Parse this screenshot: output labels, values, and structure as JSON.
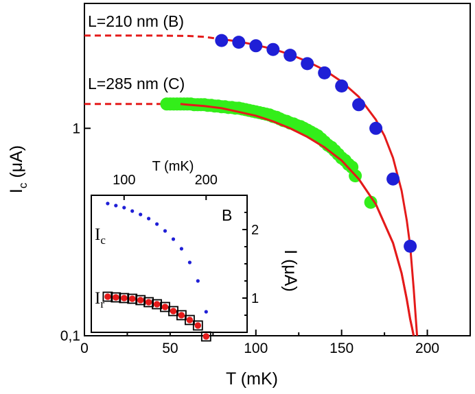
{
  "chart_data": [
    {
      "type": "scatter",
      "xlabel": "T (mK)",
      "ylabel_main": "I",
      "ylabel_sub": "c",
      "ylabel_unit": " (μA)",
      "xlim": [
        0,
        225
      ],
      "ylim": [
        0.1,
        4.0
      ],
      "yscale": "log",
      "x_ticks": [
        "0",
        "50",
        "100",
        "150",
        "200"
      ],
      "y_ticks": [
        "0,1",
        "1"
      ],
      "colors": {
        "B": "#1f1fd6",
        "C": "#33ee1a",
        "fit": "#e41a1a"
      },
      "annotations": [
        "L=210 nm (B)",
        "L=285 nm (C)"
      ],
      "series": [
        {
          "name": "B",
          "x": [
            80,
            90,
            100,
            110,
            120,
            130,
            140,
            150,
            160,
            170,
            180,
            190
          ],
          "y": [
            2.65,
            2.6,
            2.5,
            2.4,
            2.25,
            2.05,
            1.85,
            1.6,
            1.3,
            1.0,
            0.57,
            0.27
          ]
        },
        {
          "name": "C",
          "x": [
            48,
            50,
            52,
            54,
            56,
            58,
            60,
            62,
            64,
            66,
            68,
            70,
            72,
            74,
            76,
            78,
            80,
            82,
            84,
            86,
            88,
            90,
            92,
            94,
            96,
            98,
            100,
            102,
            104,
            106,
            108,
            110,
            112,
            114,
            116,
            118,
            120,
            122,
            124,
            126,
            128,
            130,
            132,
            134,
            136,
            138,
            140,
            142,
            144,
            146,
            148,
            150,
            152,
            154,
            156,
            158,
            167
          ],
          "y": [
            1.31,
            1.31,
            1.31,
            1.31,
            1.31,
            1.31,
            1.31,
            1.31,
            1.3,
            1.3,
            1.3,
            1.3,
            1.29,
            1.29,
            1.28,
            1.28,
            1.27,
            1.27,
            1.26,
            1.26,
            1.25,
            1.25,
            1.24,
            1.23,
            1.22,
            1.21,
            1.2,
            1.19,
            1.18,
            1.17,
            1.16,
            1.14,
            1.13,
            1.11,
            1.09,
            1.08,
            1.06,
            1.05,
            1.03,
            1.02,
            1.0,
            0.98,
            0.96,
            0.94,
            0.92,
            0.89,
            0.86,
            0.83,
            0.81,
            0.78,
            0.75,
            0.72,
            0.7,
            0.67,
            0.65,
            0.59,
            0.44
          ]
        },
        {
          "name": "fit B",
          "x": [
            0,
            20,
            40,
            60,
            70,
            80,
            90,
            100,
            110,
            120,
            130,
            140,
            150,
            160,
            170,
            175,
            180,
            185,
            188,
            190,
            192,
            193,
            194
          ],
          "y": [
            2.8,
            2.8,
            2.8,
            2.79,
            2.76,
            2.69,
            2.62,
            2.52,
            2.41,
            2.27,
            2.1,
            1.91,
            1.68,
            1.42,
            1.1,
            0.92,
            0.72,
            0.5,
            0.36,
            0.27,
            0.17,
            0.13,
            0.1
          ]
        },
        {
          "name": "fit C",
          "x": [
            0,
            20,
            40,
            56,
            60,
            70,
            80,
            90,
            100,
            110,
            120,
            130,
            140,
            150,
            160,
            170,
            180,
            185,
            188,
            190,
            191,
            192
          ],
          "y": [
            1.31,
            1.31,
            1.31,
            1.31,
            1.3,
            1.28,
            1.25,
            1.2,
            1.15,
            1.08,
            1.0,
            0.91,
            0.81,
            0.7,
            0.57,
            0.43,
            0.28,
            0.2,
            0.15,
            0.12,
            0.11,
            0.1
          ]
        }
      ]
    },
    {
      "type": "scatter",
      "label": "B",
      "xlabel": "T (mK)",
      "ylabel": "I (μA)",
      "xlim": [
        60,
        250
      ],
      "ylim": [
        0.5,
        2.5
      ],
      "x_ticks": [
        "100",
        "200"
      ],
      "y_ticks": [
        "1",
        "2"
      ],
      "text_labels": [
        "I",
        "c",
        "I",
        "r"
      ],
      "series": [
        {
          "name": "Ic",
          "x": [
            80,
            90,
            100,
            110,
            120,
            130,
            140,
            150,
            160,
            170,
            180,
            190,
            200
          ],
          "y": [
            2.38,
            2.35,
            2.32,
            2.27,
            2.22,
            2.16,
            2.08,
            1.98,
            1.86,
            1.72,
            1.52,
            1.25,
            0.8
          ]
        },
        {
          "name": "Ir",
          "x": [
            80,
            90,
            100,
            110,
            120,
            130,
            140,
            150,
            160,
            170,
            180,
            190,
            200
          ],
          "y": [
            1.02,
            1.01,
            1.0,
            0.99,
            0.97,
            0.94,
            0.91,
            0.87,
            0.81,
            0.75,
            0.68,
            0.6,
            0.44
          ]
        }
      ]
    }
  ]
}
